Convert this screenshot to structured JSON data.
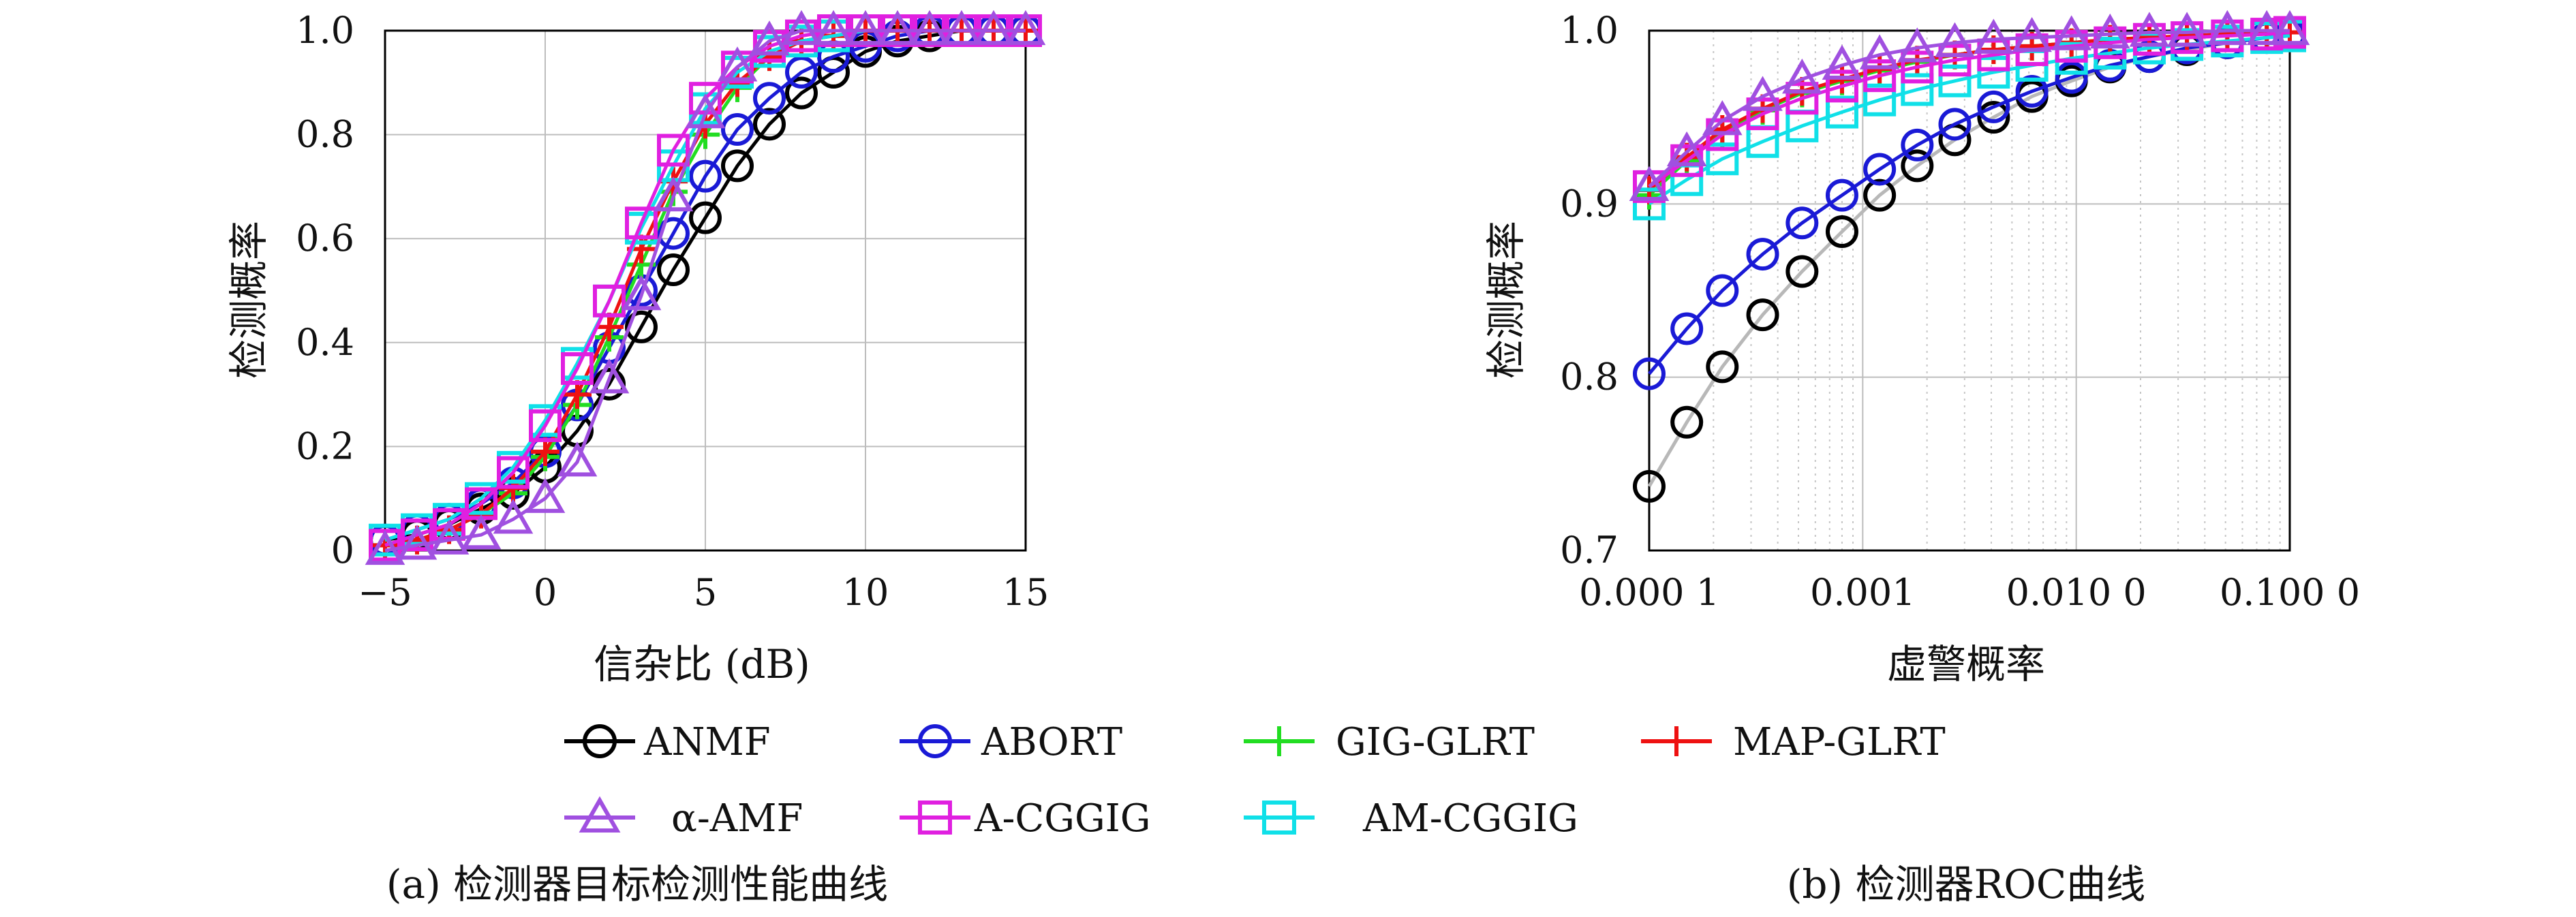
{
  "chart_data": [
    {
      "type": "line",
      "xlabel": "信杂比 (dB)",
      "ylabel": "检测概率",
      "xlim": [
        -5,
        15
      ],
      "ylim": [
        0,
        1
      ],
      "x_ticks": [
        "−5",
        "0",
        "5",
        "10",
        "15"
      ],
      "y_ticks": [
        "0",
        "0.2",
        "0.4",
        "0.6",
        "0.8",
        "1.0"
      ],
      "grid": true,
      "x": [
        -5,
        -4,
        -3,
        -2,
        -1,
        0,
        1,
        2,
        3,
        4,
        5,
        6,
        7,
        8,
        9,
        10,
        11,
        12,
        13,
        14,
        15
      ],
      "series": [
        {
          "name": "ANMF",
          "values": [
            0.02,
            0.03,
            0.05,
            0.08,
            0.11,
            0.16,
            0.23,
            0.32,
            0.43,
            0.54,
            0.64,
            0.74,
            0.82,
            0.88,
            0.92,
            0.96,
            0.98,
            0.99,
            1.0,
            1.0,
            1.0
          ]
        },
        {
          "name": "ABORT",
          "values": [
            0.02,
            0.04,
            0.06,
            0.09,
            0.13,
            0.19,
            0.28,
            0.39,
            0.5,
            0.61,
            0.72,
            0.81,
            0.87,
            0.92,
            0.95,
            0.97,
            0.99,
            1.0,
            1.0,
            1.0,
            1.0
          ]
        },
        {
          "name": "GIG-GLRT",
          "values": [
            0.01,
            0.02,
            0.04,
            0.07,
            0.11,
            0.18,
            0.28,
            0.41,
            0.55,
            0.69,
            0.8,
            0.89,
            0.95,
            0.98,
            0.99,
            1.0,
            1.0,
            1.0,
            1.0,
            1.0,
            1.0
          ]
        },
        {
          "name": "MAP-GLRT",
          "values": [
            0.01,
            0.02,
            0.04,
            0.07,
            0.12,
            0.19,
            0.3,
            0.43,
            0.58,
            0.71,
            0.82,
            0.9,
            0.95,
            0.98,
            0.99,
            1.0,
            1.0,
            1.0,
            1.0,
            1.0,
            1.0
          ]
        },
        {
          "name": "α-AMF",
          "values": [
            0.0,
            0.01,
            0.02,
            0.03,
            0.06,
            0.1,
            0.17,
            0.33,
            0.49,
            0.68,
            0.84,
            0.93,
            0.98,
            1.0,
            1.0,
            1.0,
            1.0,
            1.0,
            1.0,
            1.0,
            1.0
          ]
        },
        {
          "name": "A-CGGIG",
          "values": [
            0.01,
            0.03,
            0.05,
            0.09,
            0.15,
            0.24,
            0.35,
            0.48,
            0.63,
            0.77,
            0.87,
            0.93,
            0.97,
            0.99,
            1.0,
            1.0,
            1.0,
            1.0,
            1.0,
            1.0,
            1.0
          ]
        },
        {
          "name": "AM-CGGIG",
          "values": [
            0.02,
            0.04,
            0.06,
            0.1,
            0.16,
            0.25,
            0.36,
            0.48,
            0.62,
            0.74,
            0.85,
            0.92,
            0.96,
            0.98,
            0.99,
            1.0,
            1.0,
            1.0,
            1.0,
            1.0,
            1.0
          ]
        }
      ]
    },
    {
      "type": "line",
      "xlabel": "虚警概率",
      "ylabel": "检测概率",
      "x_scale": "log",
      "xlim": [
        0.0001,
        0.1
      ],
      "ylim": [
        0.7,
        1.0
      ],
      "x_ticks": [
        "0.000 1",
        "0.001",
        "0.010 0",
        "0.100 0"
      ],
      "y_ticks": [
        "0.7",
        "0.8",
        "0.9",
        "1.0"
      ],
      "grid": true,
      "x": [
        0.0001,
        0.00015,
        0.00022,
        0.00034,
        0.00052,
        0.0008,
        0.0012,
        0.0018,
        0.0027,
        0.0041,
        0.0062,
        0.0095,
        0.0144,
        0.022,
        0.033,
        0.051,
        0.078,
        0.1
      ],
      "series": [
        {
          "name": "ANMF",
          "values": [
            0.737,
            0.774,
            0.806,
            0.836,
            0.861,
            0.884,
            0.905,
            0.922,
            0.937,
            0.95,
            0.962,
            0.971,
            0.979,
            0.985,
            0.989,
            0.993,
            0.996,
            0.998
          ]
        },
        {
          "name": "ABORT",
          "values": [
            0.802,
            0.828,
            0.85,
            0.871,
            0.889,
            0.905,
            0.92,
            0.934,
            0.946,
            0.956,
            0.965,
            0.973,
            0.98,
            0.985,
            0.99,
            0.993,
            0.996,
            0.998
          ]
        },
        {
          "name": "GIG-GLRT",
          "values": [
            0.905,
            0.925,
            0.941,
            0.954,
            0.964,
            0.971,
            0.977,
            0.982,
            0.986,
            0.989,
            0.991,
            0.993,
            0.995,
            0.996,
            0.997,
            0.998,
            0.999,
            0.999
          ]
        },
        {
          "name": "MAP-GLRT",
          "values": [
            0.908,
            0.927,
            0.943,
            0.955,
            0.965,
            0.972,
            0.978,
            0.983,
            0.986,
            0.989,
            0.991,
            0.993,
            0.995,
            0.996,
            0.997,
            0.998,
            0.999,
            0.999
          ]
        },
        {
          "name": "α-AMF",
          "values": [
            0.91,
            0.93,
            0.948,
            0.962,
            0.972,
            0.98,
            0.986,
            0.99,
            0.993,
            0.995,
            0.996,
            0.997,
            0.998,
            0.999,
            0.999,
            1.0,
            1.0,
            1.0
          ]
        },
        {
          "name": "A-CGGIG",
          "values": [
            0.91,
            0.925,
            0.94,
            0.952,
            0.961,
            0.968,
            0.974,
            0.979,
            0.983,
            0.986,
            0.989,
            0.991,
            0.993,
            0.995,
            0.996,
            0.997,
            0.998,
            0.999
          ]
        },
        {
          "name": "AM-CGGIG",
          "values": [
            0.9,
            0.914,
            0.926,
            0.936,
            0.945,
            0.953,
            0.96,
            0.966,
            0.971,
            0.976,
            0.98,
            0.984,
            0.987,
            0.99,
            0.992,
            0.994,
            0.996,
            0.997
          ]
        }
      ]
    }
  ],
  "legend": [
    {
      "name": "ANMF",
      "color": "#000000",
      "marker": "circle"
    },
    {
      "name": "ABORT",
      "color": "#1a1ad6",
      "marker": "circle"
    },
    {
      "name": "GIG-GLRT",
      "color": "#22dd22",
      "marker": "plus"
    },
    {
      "name": "MAP-GLRT",
      "color": "#ee1111",
      "marker": "plus"
    },
    {
      "name": "α-AMF",
      "color": "#a050e0",
      "marker": "triangle"
    },
    {
      "name": "A-CGGIG",
      "color": "#e020e0",
      "marker": "square"
    },
    {
      "name": "AM-CGGIG",
      "color": "#10e0e8",
      "marker": "square"
    }
  ],
  "captions": {
    "left": "(a) 检测器目标检测性能曲线",
    "right": "(b) 检测器ROC曲线"
  }
}
